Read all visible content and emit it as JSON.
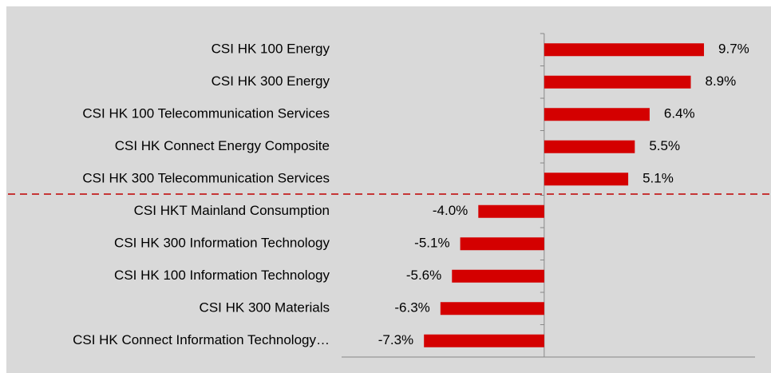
{
  "chart_data": {
    "type": "bar",
    "orientation": "horizontal",
    "categories": [
      "CSI HK 100 Energy",
      "CSI HK 300 Energy",
      "CSI HK 100 Telecommunication Services",
      "CSI HK Connect Energy Composite",
      "CSI HK 300 Telecommunication Services",
      "CSI HKT Mainland Consumption",
      "CSI HK 300 Information Technology",
      "CSI HK 100 Information Technology",
      "CSI HK 300 Materials",
      "CSI HK Connect Information Technology…"
    ],
    "values": [
      9.7,
      8.9,
      6.4,
      5.5,
      5.1,
      -4.0,
      -5.1,
      -5.6,
      -6.3,
      -7.3
    ],
    "value_labels": [
      "9.7%",
      "8.9%",
      "6.4%",
      "5.5%",
      "5.1%",
      "-4.0%",
      "-5.1%",
      "-5.6%",
      "-6.3%",
      "-7.3%"
    ],
    "color": "#d40000",
    "xlim": [
      -12.3,
      12.8
    ]
  }
}
